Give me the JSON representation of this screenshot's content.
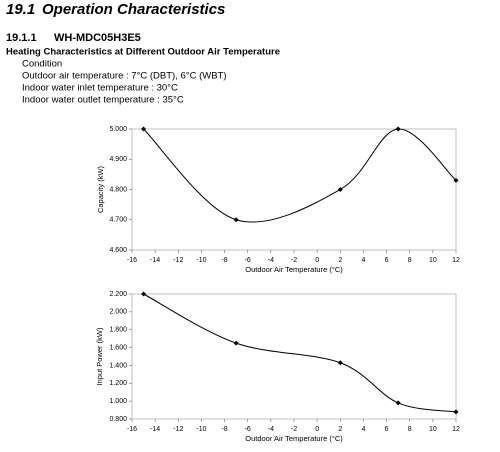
{
  "document": {
    "section_number": "19.1",
    "section_title": "Operation Characteristics",
    "subsection_number": "19.1.1",
    "model": "WH-MDC05H3E5",
    "heading": "Heating Characteristics at Different Outdoor Air Temperature",
    "condition_lines": [
      "Condition",
      "Outdoor air temperature : 7°C (DBT), 6°C (WBT)",
      "Indoor water inlet temperature : 30°C",
      "Indoor water outlet temperature : 35°C"
    ]
  },
  "chart_data": [
    {
      "type": "line",
      "x_label": "Outdoor Air Temperature (°C)",
      "y_label": "Capacity (kW)",
      "x": [
        -15,
        -7,
        2,
        7,
        12
      ],
      "values": [
        5.0,
        4.7,
        4.8,
        5.0,
        4.83
      ],
      "color": "#000000",
      "xlim": [
        -16,
        12
      ],
      "xticks": [
        -16,
        -14,
        -12,
        -10,
        -8,
        -6,
        -4,
        -2,
        0,
        2,
        4,
        6,
        8,
        10,
        12
      ],
      "ylim": [
        4.6,
        5.0
      ],
      "yticks": [
        {
          "value": 4.6,
          "label": "4.600"
        },
        {
          "value": 4.7,
          "label": "4.700"
        },
        {
          "value": 4.8,
          "label": "4.800"
        },
        {
          "value": 4.9,
          "label": "4.900"
        },
        {
          "value": 5.0,
          "label": "5.000"
        }
      ],
      "smooth": true
    },
    {
      "type": "line",
      "x_label": "Outdoor Air Temperature (°C)",
      "y_label": "Input Power (kW)",
      "x": [
        -15,
        -7,
        2,
        7,
        12
      ],
      "values": [
        2.2,
        1.65,
        1.43,
        0.98,
        0.88
      ],
      "color": "#000000",
      "xlim": [
        -16,
        12
      ],
      "xticks": [
        -16,
        -14,
        -12,
        -10,
        -8,
        -6,
        -4,
        -2,
        0,
        2,
        4,
        6,
        8,
        10,
        12
      ],
      "ylim": [
        0.8,
        2.2
      ],
      "yticks": [
        {
          "value": 0.8,
          "label": "0.800"
        },
        {
          "value": 1.0,
          "label": "1.000"
        },
        {
          "value": 1.2,
          "label": "1.200"
        },
        {
          "value": 1.4,
          "label": "1.400"
        },
        {
          "value": 1.6,
          "label": "1.600"
        },
        {
          "value": 1.8,
          "label": "1.800"
        },
        {
          "value": 2.0,
          "label": "2.000"
        },
        {
          "value": 2.2,
          "label": "2.200"
        }
      ],
      "smooth": true
    }
  ]
}
